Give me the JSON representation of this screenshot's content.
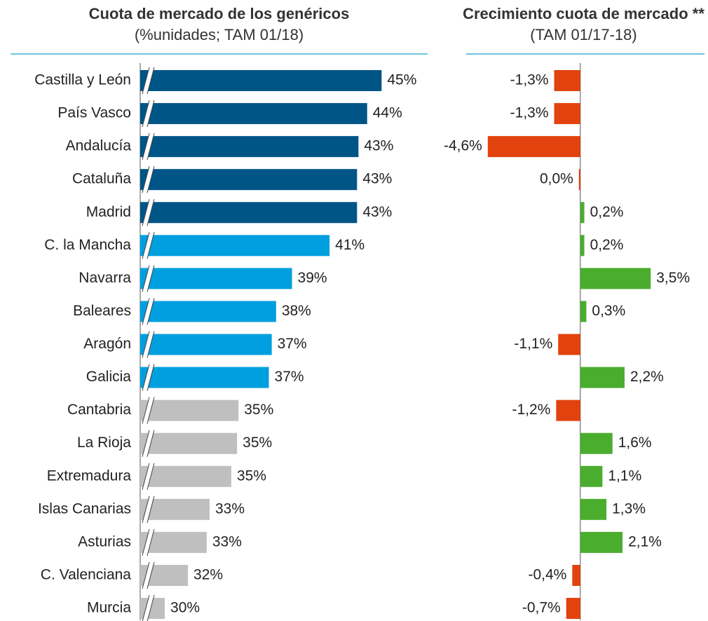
{
  "chart_data": [
    {
      "type": "barh",
      "title": "Cuota de mercado de los genéricos",
      "subtitle": "(%unidades; TAM 01/18)",
      "categories": [
        "Castilla y León",
        "País Vasco",
        "Andalucía",
        "Cataluña",
        "Madrid",
        "C. la Mancha",
        "Navarra",
        "Baleares",
        "Aragón",
        "Galicia",
        "Cantabria",
        "La Rioja",
        "Extremadura",
        "Islas Canarias",
        "Asturias",
        "C. Valenciana",
        "Murcia"
      ],
      "values": [
        45.0,
        44.0,
        43.4,
        43.3,
        43.3,
        41.4,
        38.8,
        37.7,
        37.4,
        37.2,
        35.1,
        35.0,
        34.6,
        33.1,
        32.9,
        31.6,
        30.0
      ],
      "value_labels": [
        "45%",
        "44%",
        "43%",
        "43%",
        "43%",
        "41%",
        "39%",
        "38%",
        "37%",
        "37%",
        "35%",
        "35%",
        "35%",
        "33%",
        "33%",
        "32%",
        "30%"
      ],
      "colors": [
        "#005587",
        "#005587",
        "#005587",
        "#005587",
        "#005587",
        "#009fdf",
        "#009fdf",
        "#009fdf",
        "#009fdf",
        "#009fdf",
        "#bfbfbf",
        "#bfbfbf",
        "#bfbfbf",
        "#bfbfbf",
        "#bfbfbf",
        "#bfbfbf",
        "#bfbfbf"
      ],
      "xlim": [
        28.3,
        46
      ],
      "broken_axis": true
    },
    {
      "type": "barh",
      "title": "Crecimiento cuota de mercado **",
      "subtitle": "(TAM 01/17-18)",
      "values": [
        -1.3,
        -1.3,
        -4.6,
        0.0,
        0.2,
        0.2,
        3.5,
        0.3,
        -1.1,
        2.2,
        -1.2,
        1.6,
        1.1,
        1.3,
        2.1,
        -0.4,
        -0.7
      ],
      "value_labels": [
        "-1,3%",
        "-1,3%",
        "-4,6%",
        "0,0%",
        "0,2%",
        "0,2%",
        "3,5%",
        "0,3%",
        "-1,1%",
        "2,2%",
        "-1,2%",
        "1,6%",
        "1,1%",
        "1,3%",
        "2,1%",
        "-0,4%",
        "-0,7%"
      ],
      "positive_color": "#4aad2e",
      "negative_color": "#e2420d",
      "xlim": [
        -5.5,
        6
      ]
    }
  ]
}
